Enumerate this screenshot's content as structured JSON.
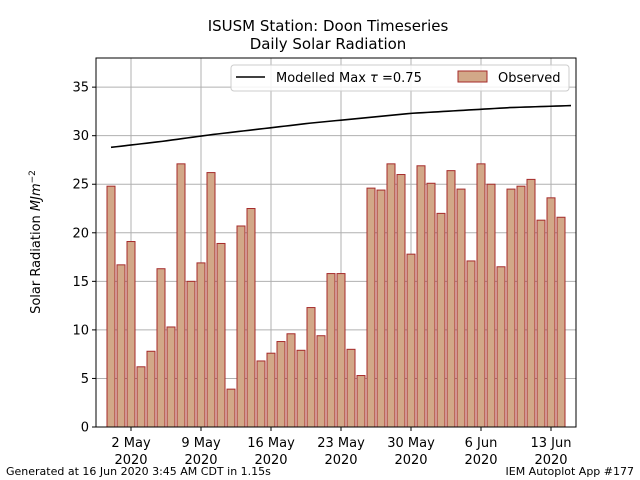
{
  "chart_data": {
    "type": "bar",
    "title": "ISUSM Station: Doon Timeseries",
    "subtitle": "Daily Solar Radiation",
    "ylabel_prefix": "Solar Radiation ",
    "ylabel_unit": "MJm",
    "ylabel_exp": "−2",
    "ylim": [
      0,
      38
    ],
    "yticks": [
      "0",
      "5",
      "10",
      "15",
      "20",
      "25",
      "30",
      "35"
    ],
    "x_first_day": "30 Apr 2020",
    "x_last_day": "15 Jun 2020",
    "xticks": [
      {
        "day": 2,
        "line1": "2 May",
        "line2": "2020"
      },
      {
        "day": 9,
        "line1": "9 May",
        "line2": "2020"
      },
      {
        "day": 16,
        "line1": "16 May",
        "line2": "2020"
      },
      {
        "day": 23,
        "line1": "23 May",
        "line2": "2020"
      },
      {
        "day": 30,
        "line1": "30 May",
        "line2": "2020"
      },
      {
        "day": 37,
        "line1": "6 Jun",
        "line2": "2020"
      },
      {
        "day": 44,
        "line1": "13 Jun",
        "line2": "2020"
      }
    ],
    "grid": true,
    "legend_position": "top-right",
    "series": [
      {
        "name": "Observed",
        "kind": "bar",
        "color": "#d2a888",
        "edge_color": "#a52a2a",
        "start_day": "30 Apr 2020",
        "values": [
          24.8,
          16.7,
          19.1,
          6.2,
          7.8,
          16.3,
          10.3,
          27.1,
          15.0,
          16.9,
          26.2,
          18.9,
          3.9,
          20.7,
          22.5,
          6.8,
          7.6,
          8.8,
          9.6,
          7.9,
          12.3,
          9.4,
          15.8,
          15.8,
          8.0,
          5.3,
          24.6,
          24.4,
          27.1,
          26.0,
          17.8,
          26.9,
          25.1,
          22.0,
          26.4,
          24.5,
          17.1,
          27.1,
          25.0,
          16.5,
          24.5,
          24.8,
          25.5,
          21.3,
          23.6,
          21.6
        ]
      },
      {
        "name": "Modelled Max τ =0.75",
        "kind": "line",
        "color": "#000000",
        "start_day": "30 Apr 2020",
        "end_day": "15 Jun 2020",
        "points": [
          {
            "date": "30 Apr 2020",
            "value": 28.8
          },
          {
            "date": "5 May 2020",
            "value": 29.4
          },
          {
            "date": "10 May 2020",
            "value": 30.1
          },
          {
            "date": "15 May 2020",
            "value": 30.7
          },
          {
            "date": "20 May 2020",
            "value": 31.3
          },
          {
            "date": "25 May 2020",
            "value": 31.8
          },
          {
            "date": "30 May 2020",
            "value": 32.3
          },
          {
            "date": "4 Jun 2020",
            "value": 32.6
          },
          {
            "date": "9 Jun 2020",
            "value": 32.9
          },
          {
            "date": "15 Jun 2020",
            "value": 33.1
          }
        ]
      }
    ]
  },
  "legend": {
    "line_label_prefix": "Modelled Max ",
    "line_label_symbol": "τ",
    "line_label_suffix": " =0.75",
    "bar_label": "Observed"
  },
  "footer": {
    "left": "Generated at 16 Jun 2020 3:45 AM CDT in 1.15s",
    "right": "IEM Autoplot App #177"
  }
}
